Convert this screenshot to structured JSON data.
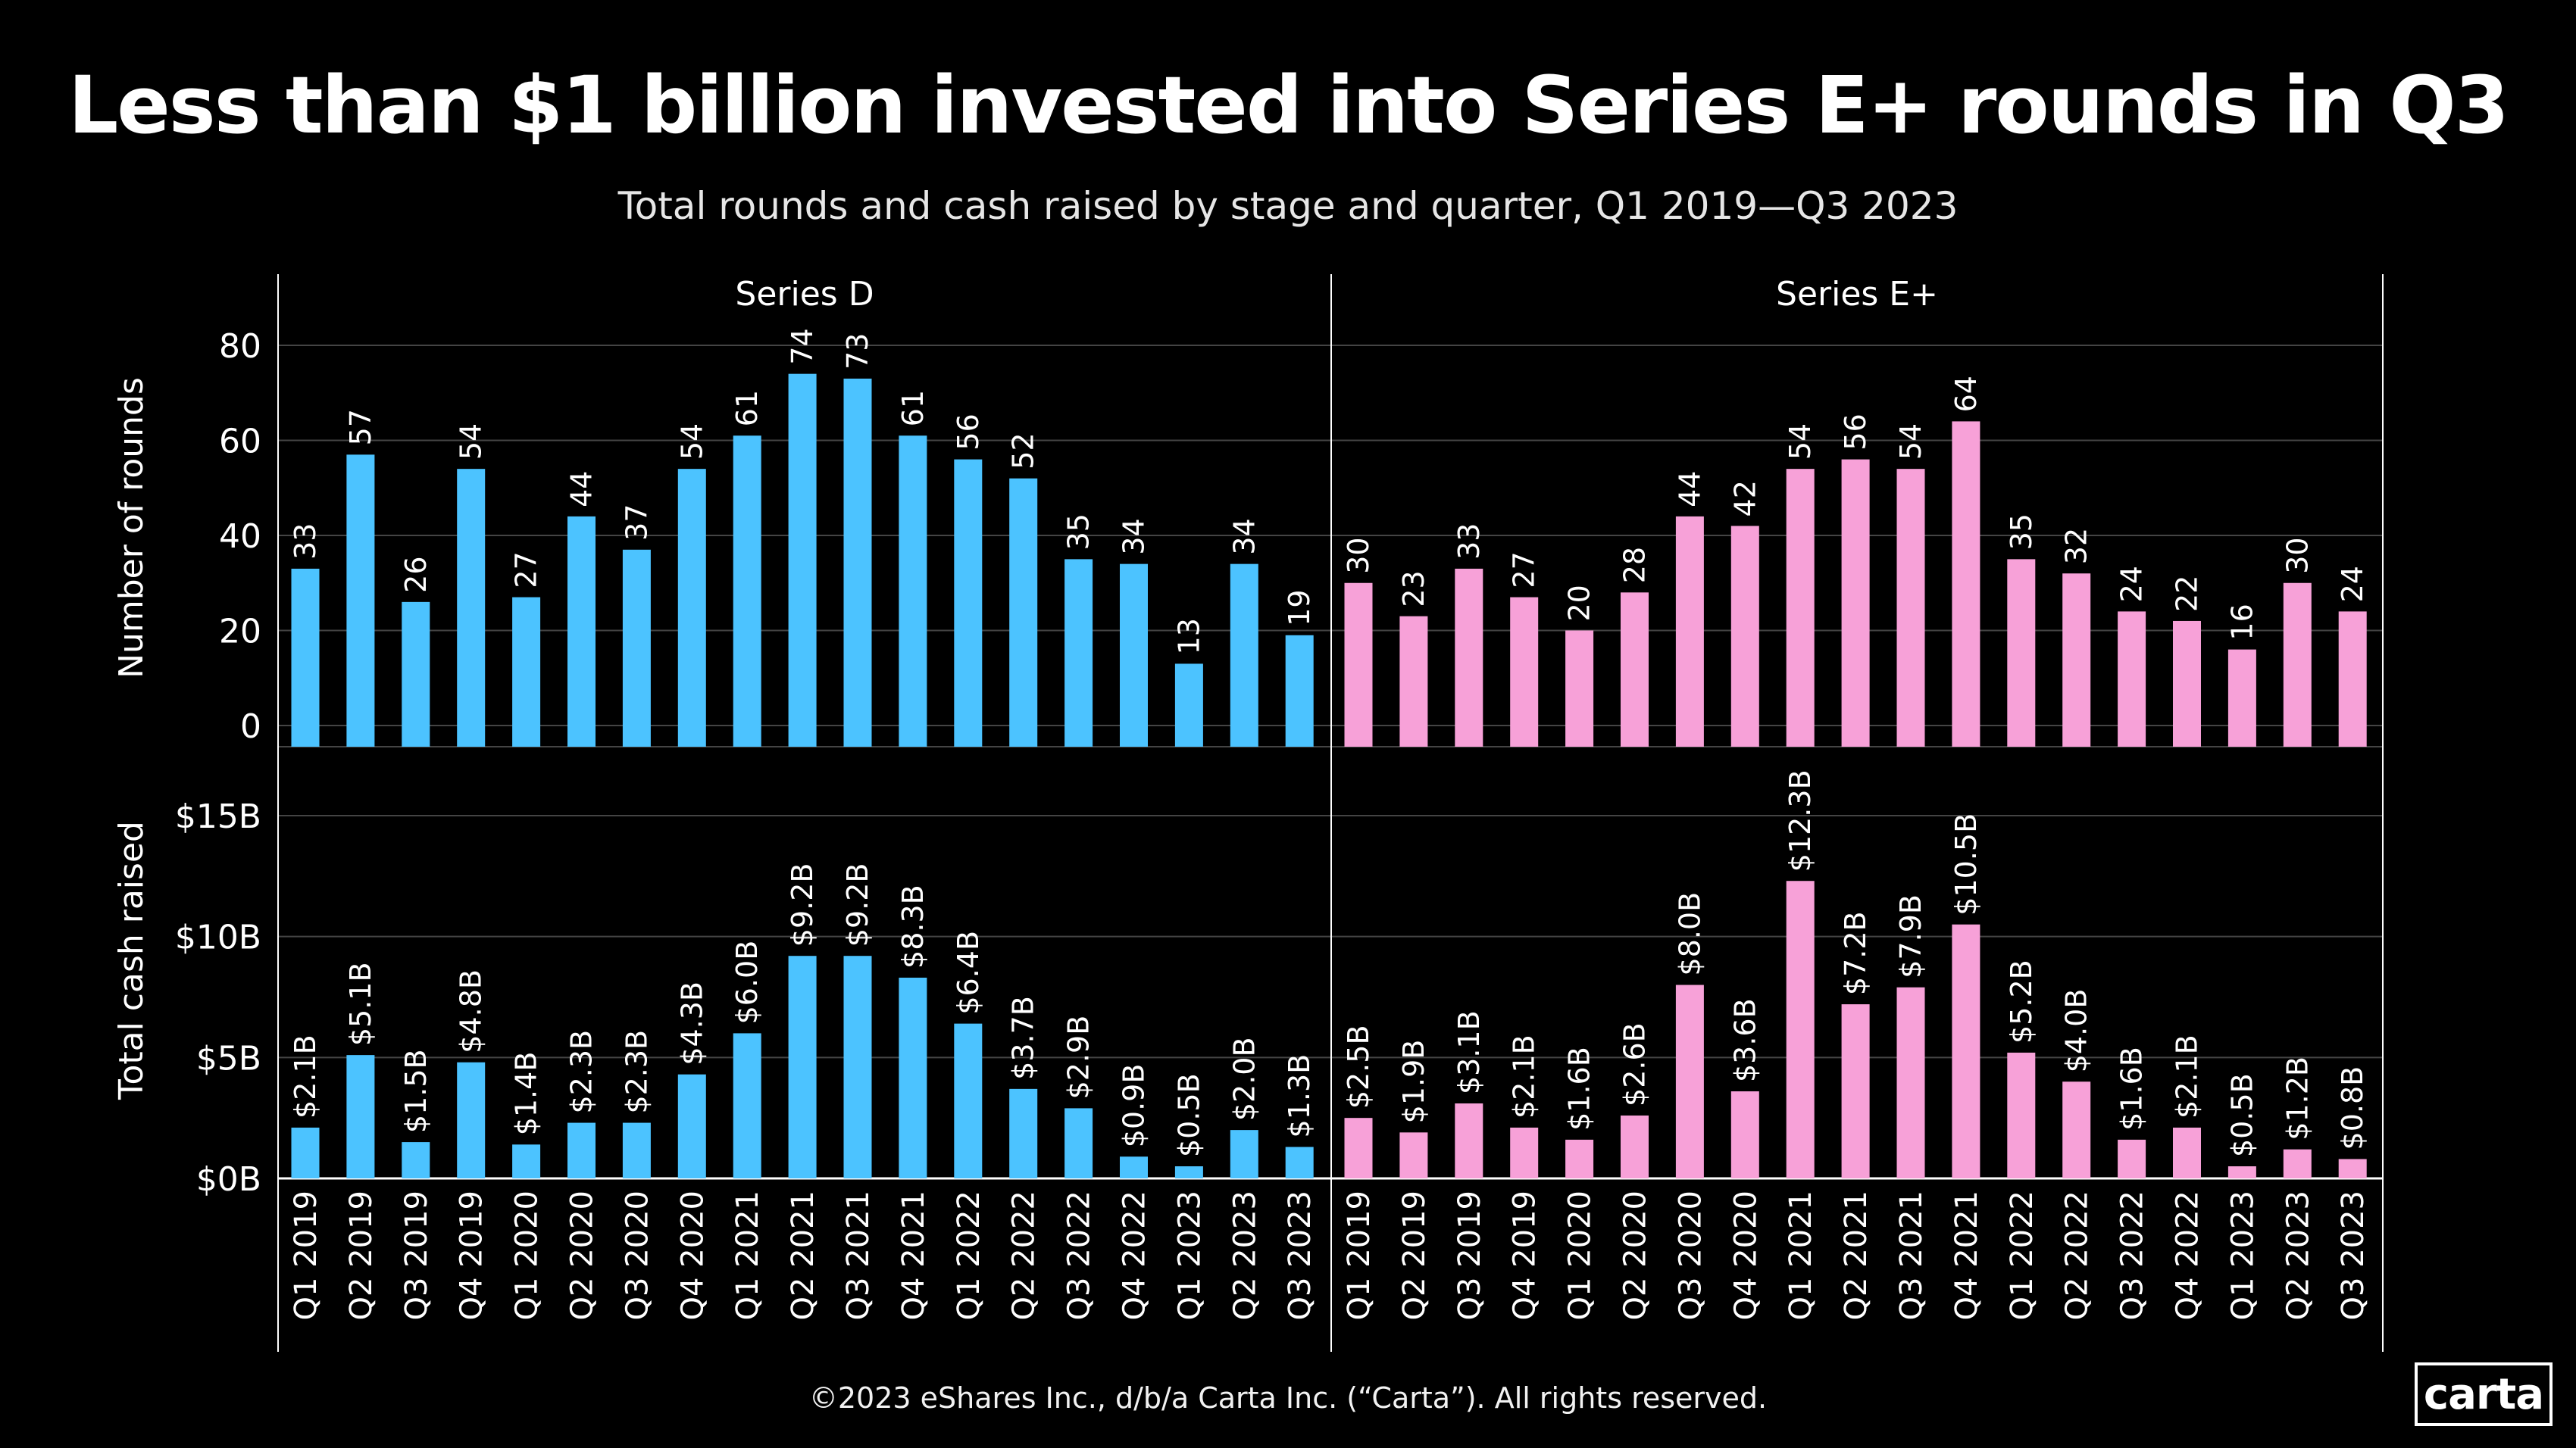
{
  "title": "Less than $1 billion invested into Series E+ rounds in Q3",
  "subtitle": "Total rounds and cash raised by stage and quarter, Q1 2019—Q3 2023",
  "footer": "©2023 eShares Inc., d/b/a Carta Inc. (“Carta”). All rights reserved.",
  "logo_text": "carta",
  "colors": {
    "series_d": "#4cc3ff",
    "series_e": "#f7a1d8",
    "background": "#000000",
    "grid": "#444444"
  },
  "chart_data": {
    "type": "bar",
    "categories": [
      "Q1 2019",
      "Q2 2019",
      "Q3 2019",
      "Q4 2019",
      "Q1 2020",
      "Q2 2020",
      "Q3 2020",
      "Q4 2020",
      "Q1 2021",
      "Q2 2021",
      "Q3 2021",
      "Q4 2021",
      "Q1 2022",
      "Q2 2022",
      "Q3 2022",
      "Q4 2022",
      "Q1 2023",
      "Q2 2023",
      "Q3 2023"
    ],
    "facets": [
      {
        "name": "Series D",
        "rounds": [
          33,
          57,
          26,
          54,
          27,
          44,
          37,
          54,
          61,
          74,
          73,
          61,
          56,
          52,
          35,
          34,
          13,
          34,
          19
        ],
        "cash": [
          2.1,
          5.1,
          1.5,
          4.8,
          1.4,
          2.3,
          2.3,
          4.3,
          6.0,
          9.2,
          9.2,
          8.3,
          6.4,
          3.7,
          2.9,
          0.9,
          0.5,
          2.0,
          1.3
        ],
        "cash_labels": [
          "$2.1B",
          "$5.1B",
          "$1.5B",
          "$4.8B",
          "$1.4B",
          "$2.3B",
          "$2.3B",
          "$4.3B",
          "$6.0B",
          "$9.2B",
          "$9.2B",
          "$8.3B",
          "$6.4B",
          "$3.7B",
          "$2.9B",
          "$0.9B",
          "$0.5B",
          "$2.0B",
          "$1.3B"
        ]
      },
      {
        "name": "Series E+",
        "rounds": [
          30,
          23,
          33,
          27,
          20,
          28,
          44,
          42,
          54,
          56,
          54,
          64,
          35,
          32,
          24,
          22,
          16,
          30,
          24
        ],
        "cash": [
          2.5,
          1.9,
          3.1,
          2.1,
          1.6,
          2.6,
          8.0,
          3.6,
          12.3,
          7.2,
          7.9,
          10.5,
          5.2,
          4.0,
          1.6,
          2.1,
          0.5,
          1.2,
          0.8
        ],
        "cash_labels": [
          "$2.5B",
          "$1.9B",
          "$3.1B",
          "$2.1B",
          "$1.6B",
          "$2.6B",
          "$8.0B",
          "$3.6B",
          "$12.3B",
          "$7.2B",
          "$7.9B",
          "$10.5B",
          "$5.2B",
          "$4.0B",
          "$1.6B",
          "$2.1B",
          "$0.5B",
          "$1.2B",
          "$0.8B"
        ]
      }
    ],
    "top_panel": {
      "ylabel": "Number of rounds",
      "ylim": [
        0,
        80
      ],
      "ticks": [
        "0",
        "20",
        "40",
        "60",
        "80"
      ]
    },
    "bottom_panel": {
      "ylabel": "Total cash raised",
      "ylim": [
        0,
        15
      ],
      "ticks": [
        "$0B",
        "$5B",
        "$10B",
        "$15B"
      ]
    },
    "grid": true
  }
}
